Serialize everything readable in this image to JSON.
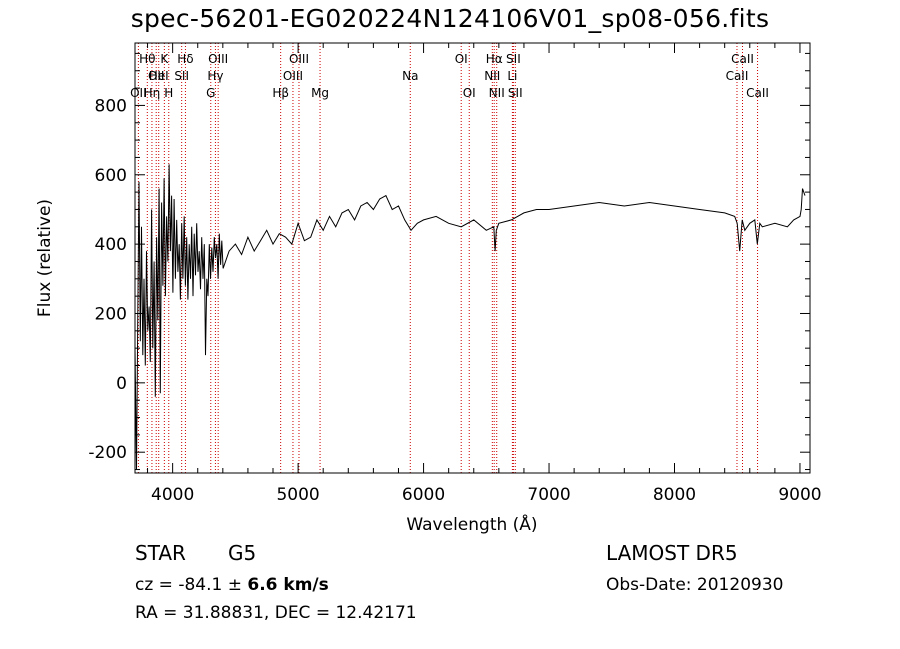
{
  "chart_data": {
    "type": "line",
    "title": "spec-56201-EG020224N124106V01_sp08-056.fits",
    "xlabel": "Wavelength (Å)",
    "ylabel": "Flux (relative)",
    "xlim": [
      3700,
      9080
    ],
    "ylim": [
      -260,
      980
    ],
    "xticks": [
      4000,
      5000,
      6000,
      7000,
      8000,
      9000
    ],
    "yticks": [
      -200,
      0,
      200,
      400,
      600,
      800
    ],
    "line_color": "#000000",
    "marker_color": "#cc0000",
    "series": [
      {
        "values_x": [
          3700,
          3712,
          3722,
          3732,
          3742,
          3752,
          3762,
          3772,
          3782,
          3792,
          3802,
          3812,
          3822,
          3832,
          3842,
          3852,
          3862,
          3872,
          3882,
          3892,
          3902,
          3912,
          3922,
          3932,
          3942,
          3952,
          3962,
          3972,
          3982,
          3992,
          4002,
          4012,
          4022,
          4032,
          4042,
          4052,
          4062,
          4072,
          4082,
          4092,
          4102,
          4112,
          4122,
          4132,
          4142,
          4152,
          4162,
          4172,
          4182,
          4192,
          4202,
          4212,
          4222,
          4232,
          4242,
          4252,
          4262,
          4272,
          4282,
          4292,
          4302,
          4312,
          4322,
          4332,
          4342,
          4352,
          4362,
          4372,
          4382,
          4392,
          4402,
          4450,
          4500,
          4550,
          4600,
          4650,
          4700,
          4750,
          4800,
          4850,
          4900,
          4950,
          5000,
          5050,
          5100,
          5150,
          5200,
          5250,
          5300,
          5350,
          5400,
          5450,
          5500,
          5550,
          5600,
          5650,
          5700,
          5750,
          5800,
          5850,
          5900,
          5950,
          6000,
          6100,
          6200,
          6300,
          6400,
          6500,
          6560,
          6570,
          6580,
          6600,
          6700,
          6800,
          6900,
          7000,
          7200,
          7400,
          7600,
          7800,
          8000,
          8200,
          8400,
          8480,
          8500,
          8520,
          8540,
          8560,
          8600,
          8640,
          8660,
          8680,
          8700,
          8800,
          8900,
          8950,
          9000,
          9010,
          9020,
          9040
        ],
        "values_y": [
          100,
          -250,
          200,
          580,
          120,
          450,
          80,
          300,
          50,
          380,
          150,
          220,
          60,
          500,
          100,
          350,
          -40,
          420,
          180,
          560,
          -30,
          520,
          280,
          590,
          250,
          480,
          350,
          630,
          380,
          540,
          260,
          530,
          300,
          470,
          320,
          400,
          240,
          460,
          300,
          480,
          280,
          420,
          240,
          400,
          300,
          450,
          250,
          430,
          310,
          460,
          320,
          380,
          270,
          420,
          300,
          400,
          80,
          300,
          250,
          400,
          300,
          390,
          320,
          420,
          360,
          400,
          300,
          430,
          340,
          410,
          330,
          380,
          400,
          370,
          420,
          380,
          410,
          440,
          400,
          430,
          420,
          400,
          460,
          410,
          420,
          470,
          440,
          480,
          450,
          490,
          500,
          470,
          510,
          520,
          500,
          530,
          540,
          500,
          510,
          470,
          440,
          460,
          470,
          480,
          460,
          450,
          470,
          440,
          450,
          380,
          440,
          460,
          470,
          490,
          500,
          500,
          510,
          520,
          510,
          520,
          510,
          500,
          490,
          480,
          460,
          380,
          470,
          440,
          460,
          470,
          400,
          460,
          450,
          460,
          450,
          470,
          480,
          500,
          560,
          540
        ],
        "name": ""
      }
    ],
    "lines": [
      {
        "x": 3727,
        "labels": [
          "OII"
        ],
        "level": 2
      },
      {
        "x": 3798,
        "labels": [
          "Hθ"
        ],
        "level": 0
      },
      {
        "x": 3835,
        "labels": [
          "Hη"
        ],
        "level": 2
      },
      {
        "x": 3869,
        "labels": [
          "OII"
        ],
        "level": 1
      },
      {
        "x": 3889,
        "labels": [
          "HeI"
        ],
        "level": 1
      },
      {
        "x": 3934,
        "labels": [
          "K"
        ],
        "level": 0
      },
      {
        "x": 3969,
        "labels": [
          "H"
        ],
        "level": 2
      },
      {
        "x": 4072,
        "labels": [
          "SII"
        ],
        "level": 1
      },
      {
        "x": 4102,
        "labels": [
          "Hδ"
        ],
        "level": 0
      },
      {
        "x": 4304,
        "labels": [
          "G"
        ],
        "level": 2
      },
      {
        "x": 4341,
        "labels": [
          "Hγ"
        ],
        "level": 1
      },
      {
        "x": 4363,
        "labels": [
          "OIII"
        ],
        "level": 0
      },
      {
        "x": 4861,
        "labels": [
          "Hβ"
        ],
        "level": 2
      },
      {
        "x": 4959,
        "labels": [
          "OIII"
        ],
        "level": 1
      },
      {
        "x": 5007,
        "labels": [
          "OIII"
        ],
        "level": 0
      },
      {
        "x": 5175,
        "labels": [
          "Mg"
        ],
        "level": 2
      },
      {
        "x": 5894,
        "labels": [
          "Na"
        ],
        "level": 1
      },
      {
        "x": 6300,
        "labels": [
          "OI"
        ],
        "level": 0
      },
      {
        "x": 6364,
        "labels": [
          "OI"
        ],
        "level": 2
      },
      {
        "x": 6548,
        "labels": [
          "NII"
        ],
        "level": 1
      },
      {
        "x": 6563,
        "labels": [
          "Hα"
        ],
        "level": 0
      },
      {
        "x": 6583,
        "labels": [
          "NII"
        ],
        "level": 2
      },
      {
        "x": 6708,
        "labels": [
          "Li"
        ],
        "level": 1
      },
      {
        "x": 6716,
        "labels": [
          "SII"
        ],
        "level": 0
      },
      {
        "x": 6731,
        "labels": [
          "SII"
        ],
        "level": 2
      },
      {
        "x": 8498,
        "labels": [
          "CaII"
        ],
        "level": 1
      },
      {
        "x": 8542,
        "labels": [
          "CaII"
        ],
        "level": 0
      },
      {
        "x": 8662,
        "labels": [
          "CaII"
        ],
        "level": 2
      }
    ]
  },
  "info": {
    "class": "STAR",
    "subclass": "G5",
    "survey": "LAMOST DR5",
    "cz_prefix": "cz = -84.1 ± ",
    "cz_err": "6.6 km/s",
    "obs_date": "Obs-Date: 20120930",
    "radec": "RA =  31.88831, DEC =  12.42171"
  }
}
